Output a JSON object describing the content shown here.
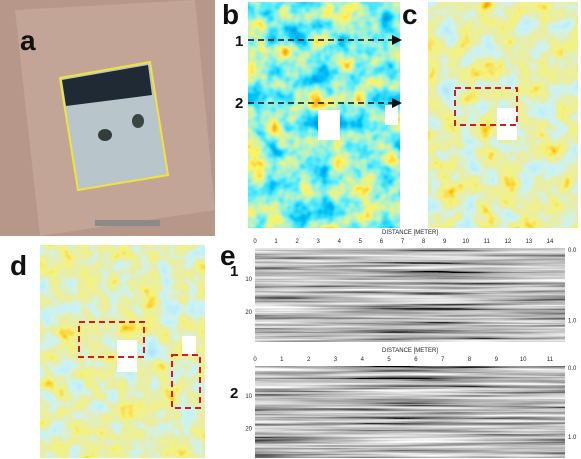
{
  "panels": {
    "a": "a",
    "b": "b",
    "c": "c",
    "d": "d",
    "e": "e"
  },
  "profile_lines": [
    "1",
    "2"
  ],
  "radargrams": [
    {
      "label": "1",
      "axis_title": "DISTANCE [METER]",
      "x_ticks": [
        "0",
        "1",
        "2",
        "3",
        "4",
        "5",
        "6",
        "7",
        "8",
        "9",
        "10",
        "11",
        "12",
        "13",
        "14"
      ],
      "depth_ticks": [
        "10",
        "20"
      ],
      "time_ticks": [
        "0.0",
        "1.0"
      ]
    },
    {
      "label": "2",
      "axis_title": "DISTANCE [METER]",
      "x_ticks": [
        "0",
        "1",
        "2",
        "3",
        "4",
        "5",
        "6",
        "7",
        "8",
        "9",
        "10",
        "11"
      ],
      "depth_ticks": [
        "10",
        "20"
      ],
      "time_ticks": [
        "0.0",
        "1.0"
      ]
    }
  ]
}
